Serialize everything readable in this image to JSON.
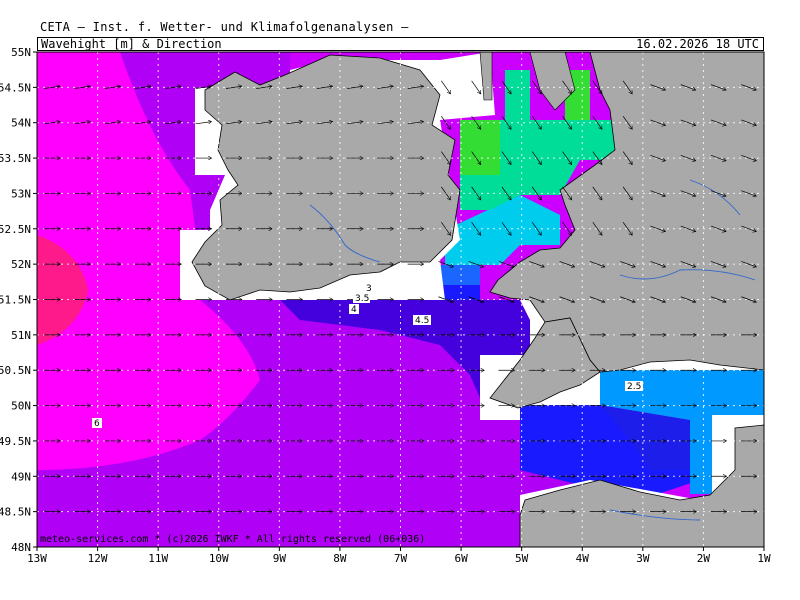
{
  "header": {
    "institute": "CETA — Inst. f. Wetter- und Klimafolgenanalysen —",
    "field": "Wavehight [m] & Direction",
    "valid_time": "16.02.2026 18 UTC"
  },
  "footer": "meteo-services.com * (c)2026 IWKF * All rights reserved (06+036)",
  "axes": {
    "lat_labels": [
      "55N",
      "54.5N",
      "54N",
      "53.5N",
      "53N",
      "52.5N",
      "52N",
      "51.5N",
      "51N",
      "50.5N",
      "50N",
      "49.5N",
      "49N",
      "48.5N",
      "48N"
    ],
    "lon_labels": [
      "13W",
      "12W",
      "11W",
      "10W",
      "9W",
      "8W",
      "7W",
      "6W",
      "5W",
      "4W",
      "3W",
      "2W",
      "1W"
    ]
  },
  "contour_labels": [
    "3",
    "3.5",
    "4",
    "4.5",
    "2.5",
    "6"
  ],
  "colors": {
    "land": "#a9a9a9",
    "sea_no_data": "#ffffff",
    "wave_6m": "#ff1a8c",
    "wave_5_5m": "#ff00ff",
    "wave_5m": "#cc00ff",
    "wave_4_5m": "#9900ee",
    "wave_4m": "#4400dd",
    "wave_3_5m": "#1a1aff",
    "wave_3m": "#1a66ff",
    "wave_2_5m": "#0099ff",
    "wave_2m": "#00ccee",
    "wave_1_5m": "#00dd99",
    "wave_1m": "#33dd33"
  }
}
